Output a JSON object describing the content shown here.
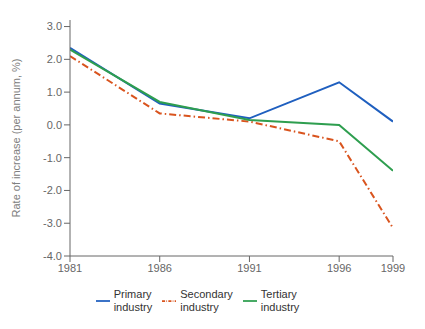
{
  "chart_data": {
    "type": "line",
    "x": [
      1981,
      1986,
      1991,
      1996,
      1999
    ],
    "series": [
      {
        "name": "Primary\nindustry",
        "color": "#1f5fbf",
        "line_style": "solid",
        "values": [
          2.35,
          0.65,
          0.2,
          1.3,
          0.1
        ]
      },
      {
        "name": "Secondary\nindustry",
        "color": "#d9541e",
        "line_style": "dashdot",
        "values": [
          2.1,
          0.35,
          0.1,
          -0.5,
          -3.15
        ]
      },
      {
        "name": "Tertiary\nindustry",
        "color": "#2e9e4f",
        "line_style": "solid",
        "values": [
          2.3,
          0.7,
          0.15,
          0.0,
          -1.4
        ]
      }
    ],
    "xlim": [
      1981,
      1999
    ],
    "xticks": [
      1981,
      1986,
      1991,
      1996,
      1999
    ],
    "ylim": [
      -4.0,
      3.2
    ],
    "yticks": [
      {
        "value": 3.0,
        "label": "3.0"
      },
      {
        "value": 2.0,
        "label": "2.0"
      },
      {
        "value": 1.0,
        "label": "1.0"
      },
      {
        "value": 0.0,
        "label": "0.0"
      },
      {
        "value": -1.0,
        "label": "-1.0"
      },
      {
        "value": -2.0,
        "label": "-2.0"
      },
      {
        "value": -3.0,
        "label": "-3.0"
      },
      {
        "value": -4.0,
        "label": "-4.0"
      }
    ],
    "ylabel": "Rate of increase (per annum, %)",
    "grid": false,
    "legend": "bottom"
  }
}
